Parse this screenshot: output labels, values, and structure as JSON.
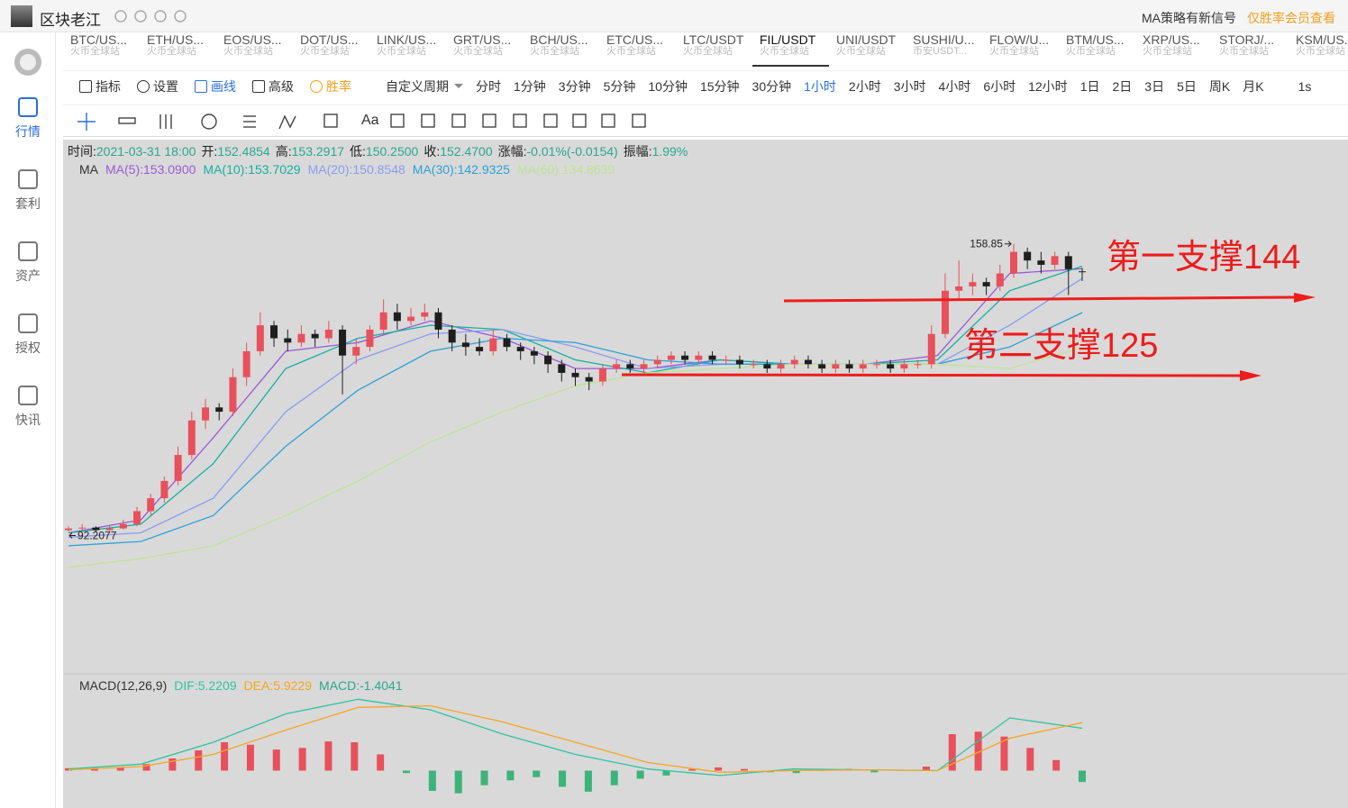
{
  "header": {
    "username": "区块老江",
    "signal": "MA策略有新信号",
    "vip": "仅胜率会员查看"
  },
  "sidebar": [
    "行情",
    "套利",
    "资产",
    "授权",
    "快讯"
  ],
  "tabs": [
    {
      "pair": "BTC/US...",
      "exchange": "火币全球站"
    },
    {
      "pair": "ETH/US...",
      "exchange": "火币全球站"
    },
    {
      "pair": "EOS/US...",
      "exchange": "火币全球站"
    },
    {
      "pair": "DOT/US...",
      "exchange": "火币全球站"
    },
    {
      "pair": "LINK/US...",
      "exchange": "火币全球站"
    },
    {
      "pair": "GRT/US...",
      "exchange": "火币全球站"
    },
    {
      "pair": "BCH/US...",
      "exchange": "火币全球站"
    },
    {
      "pair": "ETC/US...",
      "exchange": "火币全球站"
    },
    {
      "pair": "LTC/USDT",
      "exchange": "火币全球站"
    },
    {
      "pair": "FIL/USDT",
      "exchange": "火币全球站"
    },
    {
      "pair": "UNI/USDT",
      "exchange": "火币全球站"
    },
    {
      "pair": "SUSHI/U...",
      "exchange": "币安USDT..."
    },
    {
      "pair": "FLOW/U...",
      "exchange": "火币全球站"
    },
    {
      "pair": "BTM/US...",
      "exchange": "火币全球站"
    },
    {
      "pair": "XRP/US...",
      "exchange": "火币全球站"
    },
    {
      "pair": "STORJ/...",
      "exchange": "火币全球站"
    },
    {
      "pair": "KSM/US...",
      "exchange": "火币全球站"
    }
  ],
  "toolbar": [
    "指标",
    "设置",
    "画线",
    "高级",
    "胜率"
  ],
  "period_menu": "自定义周期",
  "periods": [
    "分时",
    "1分钟",
    "3分钟",
    "5分钟",
    "10分钟",
    "15分钟",
    "30分钟",
    "1小时",
    "2小时",
    "3小时",
    "4小时",
    "6小时",
    "12小时",
    "1日",
    "2日",
    "3日",
    "5日",
    "周K",
    "月K"
  ],
  "refresh": "1s",
  "draw_tools_text": "Aa",
  "info": [
    {
      "label": "时间:",
      "value": "2021-03-31 18:00"
    },
    {
      "label": "开:",
      "value": "152.4854"
    },
    {
      "label": "高:",
      "value": "153.2917"
    },
    {
      "label": "低:",
      "value": "150.2500"
    },
    {
      "label": "收:",
      "value": "152.4700"
    },
    {
      "label": "涨幅:",
      "value": "-0.01%(-0.0154)"
    },
    {
      "label": "振幅:",
      "value": "1.99%"
    }
  ],
  "chart_data": [
    {
      "type": "candlestick",
      "title": "MA",
      "ylim": [
        60,
        174
      ],
      "up_color": "#e8505b",
      "down_color": "#1e1e1e",
      "candles": [
        [
          92.6,
          93.5,
          92.3,
          93
        ],
        [
          93,
          94,
          92.5,
          93.2
        ],
        [
          93.2,
          93.5,
          92.2077,
          92.6
        ],
        [
          92.6,
          93.8,
          92.4,
          93
        ],
        [
          93,
          95,
          92.8,
          94
        ],
        [
          94,
          98,
          93.5,
          97
        ],
        [
          97,
          101,
          96,
          100
        ],
        [
          100,
          105,
          99,
          104
        ],
        [
          104,
          112,
          103,
          110
        ],
        [
          110,
          120,
          109,
          118
        ],
        [
          118,
          123,
          116,
          121
        ],
        [
          121,
          122,
          118,
          120
        ],
        [
          120,
          130,
          119,
          128
        ],
        [
          128,
          136,
          126,
          134
        ],
        [
          134,
          143,
          133,
          140
        ],
        [
          140,
          141,
          135,
          137
        ],
        [
          137,
          139,
          134,
          136
        ],
        [
          136,
          140,
          135,
          138
        ],
        [
          138,
          139,
          135,
          137
        ],
        [
          137,
          141,
          136,
          139
        ],
        [
          139,
          140,
          124,
          133
        ],
        [
          133,
          137,
          131,
          135
        ],
        [
          135,
          140,
          134,
          139
        ],
        [
          139,
          146,
          138,
          143
        ],
        [
          143,
          145,
          139,
          141
        ],
        [
          141,
          144,
          140,
          142
        ],
        [
          142,
          145,
          141,
          143
        ],
        [
          143,
          144,
          137,
          139
        ],
        [
          139,
          140,
          134,
          136
        ],
        [
          136,
          138,
          133,
          135
        ],
        [
          135,
          137,
          133,
          134
        ],
        [
          134,
          139,
          133,
          137
        ],
        [
          137,
          138,
          134,
          135
        ],
        [
          135,
          136,
          132,
          134
        ],
        [
          134,
          135,
          131,
          133
        ],
        [
          133,
          134,
          129,
          131
        ],
        [
          131,
          132,
          127,
          129
        ],
        [
          129,
          130,
          126,
          128
        ],
        [
          128,
          129,
          125,
          127
        ],
        [
          127,
          131,
          126,
          130
        ],
        [
          130,
          132,
          129,
          131
        ],
        [
          131,
          132,
          129,
          130
        ],
        [
          130,
          132,
          129,
          131
        ],
        [
          131,
          133,
          130,
          132
        ],
        [
          132,
          134,
          131,
          133
        ],
        [
          133,
          134,
          131,
          132
        ],
        [
          132,
          134,
          131,
          133
        ],
        [
          133,
          134,
          131,
          132
        ],
        [
          132,
          133,
          131,
          132
        ],
        [
          132,
          133,
          130,
          131
        ],
        [
          131,
          132,
          130,
          131
        ],
        [
          131,
          132,
          129,
          130
        ],
        [
          130,
          132,
          129,
          131
        ],
        [
          131,
          133,
          130,
          132
        ],
        [
          132,
          133,
          130,
          131
        ],
        [
          131,
          132,
          129,
          130
        ],
        [
          130,
          132,
          129,
          131
        ],
        [
          131,
          132,
          129,
          130
        ],
        [
          130,
          132,
          129,
          131
        ],
        [
          131,
          132,
          130,
          131
        ],
        [
          131,
          132,
          129,
          130
        ],
        [
          130,
          132,
          129,
          131
        ],
        [
          131,
          132,
          130,
          131
        ],
        [
          131,
          140,
          130,
          138
        ],
        [
          138,
          152,
          137,
          148
        ],
        [
          148,
          155,
          146,
          149
        ],
        [
          149,
          152,
          147,
          150
        ],
        [
          150,
          151,
          147,
          149
        ],
        [
          149,
          154,
          148,
          152
        ],
        [
          152,
          158.85,
          151,
          157
        ],
        [
          157,
          158,
          153,
          155
        ],
        [
          155,
          157,
          152,
          154
        ],
        [
          154,
          157,
          153,
          156
        ],
        [
          156,
          157,
          147,
          153
        ],
        [
          152.4854,
          153.2917,
          150.25,
          152.47
        ]
      ],
      "max_label": "158.85",
      "min_label": "92.2077",
      "series": [
        {
          "name": "MA(5):153.0900",
          "color": "#9b59d6",
          "values": [
            92,
            95,
            114,
            134,
            136,
            141,
            137,
            130,
            130,
            132,
            131,
            131,
            133,
            152,
            153.09
          ]
        },
        {
          "name": "MA(10):153.7029",
          "color": "#14b0a0",
          "values": [
            92,
            94,
            108,
            130,
            137,
            140,
            139,
            132,
            129,
            132,
            131,
            131,
            132,
            148,
            153.7029
          ]
        },
        {
          "name": "MA(20):150.8548",
          "color": "#8a9cf0",
          "values": [
            91,
            92,
            100,
            120,
            132,
            138,
            139,
            135,
            130,
            131,
            131,
            131,
            131,
            140,
            150.8548
          ]
        },
        {
          "name": "MA(30):142.9325",
          "color": "#2ea0d8",
          "values": [
            89,
            90,
            96,
            112,
            125,
            134,
            137,
            136,
            132,
            131,
            131,
            131,
            131,
            135,
            142.9325
          ]
        },
        {
          "name": "MA(60):134.8639",
          "color": "#bfe394",
          "values": [
            84,
            86,
            89,
            96,
            104,
            113,
            120,
            126,
            129,
            130,
            131,
            131,
            131,
            130,
            134.8639
          ]
        }
      ],
      "annotations": [
        "第一支撑144",
        "第二支撑125"
      ]
    },
    {
      "type": "macd",
      "title": "MACD(12,26,9)",
      "ylim": [
        -4.5,
        9.5
      ],
      "series": [
        {
          "name": "DIF:5.2209",
          "color": "#2ec4a0",
          "values": [
            0.2,
            0.8,
            3.5,
            7.0,
            8.8,
            7.5,
            4.5,
            2.0,
            0.2,
            -0.6,
            0.2,
            0.1,
            0.0,
            6.5,
            5.2209
          ]
        },
        {
          "name": "DEA:5.9229",
          "color": "#f5a623",
          "values": [
            0.1,
            0.5,
            2.0,
            5.0,
            7.8,
            8.0,
            6.0,
            3.5,
            1.0,
            -0.2,
            0.0,
            0.1,
            0.0,
            4.0,
            5.9229
          ]
        }
      ],
      "histogram": {
        "name": "MACD:-1.4041",
        "color": "#2aa88a",
        "up_color": "#e8505b",
        "down_color": "#3cb37a",
        "values": [
          0.3,
          0.3,
          0.4,
          0.8,
          1.5,
          2.5,
          3.5,
          3.2,
          2.6,
          2.8,
          3.6,
          3.5,
          2.0,
          -0.3,
          -2.5,
          -2.8,
          -1.8,
          -1.2,
          -0.8,
          -2.0,
          -2.6,
          -1.8,
          -1.0,
          -0.6,
          0.2,
          0.4,
          0.2,
          -0.2,
          -0.3,
          0.1,
          0.2,
          -0.2,
          0.1,
          0.5,
          4.5,
          4.8,
          4.2,
          2.8,
          1.3,
          -1.4041
        ]
      }
    }
  ]
}
